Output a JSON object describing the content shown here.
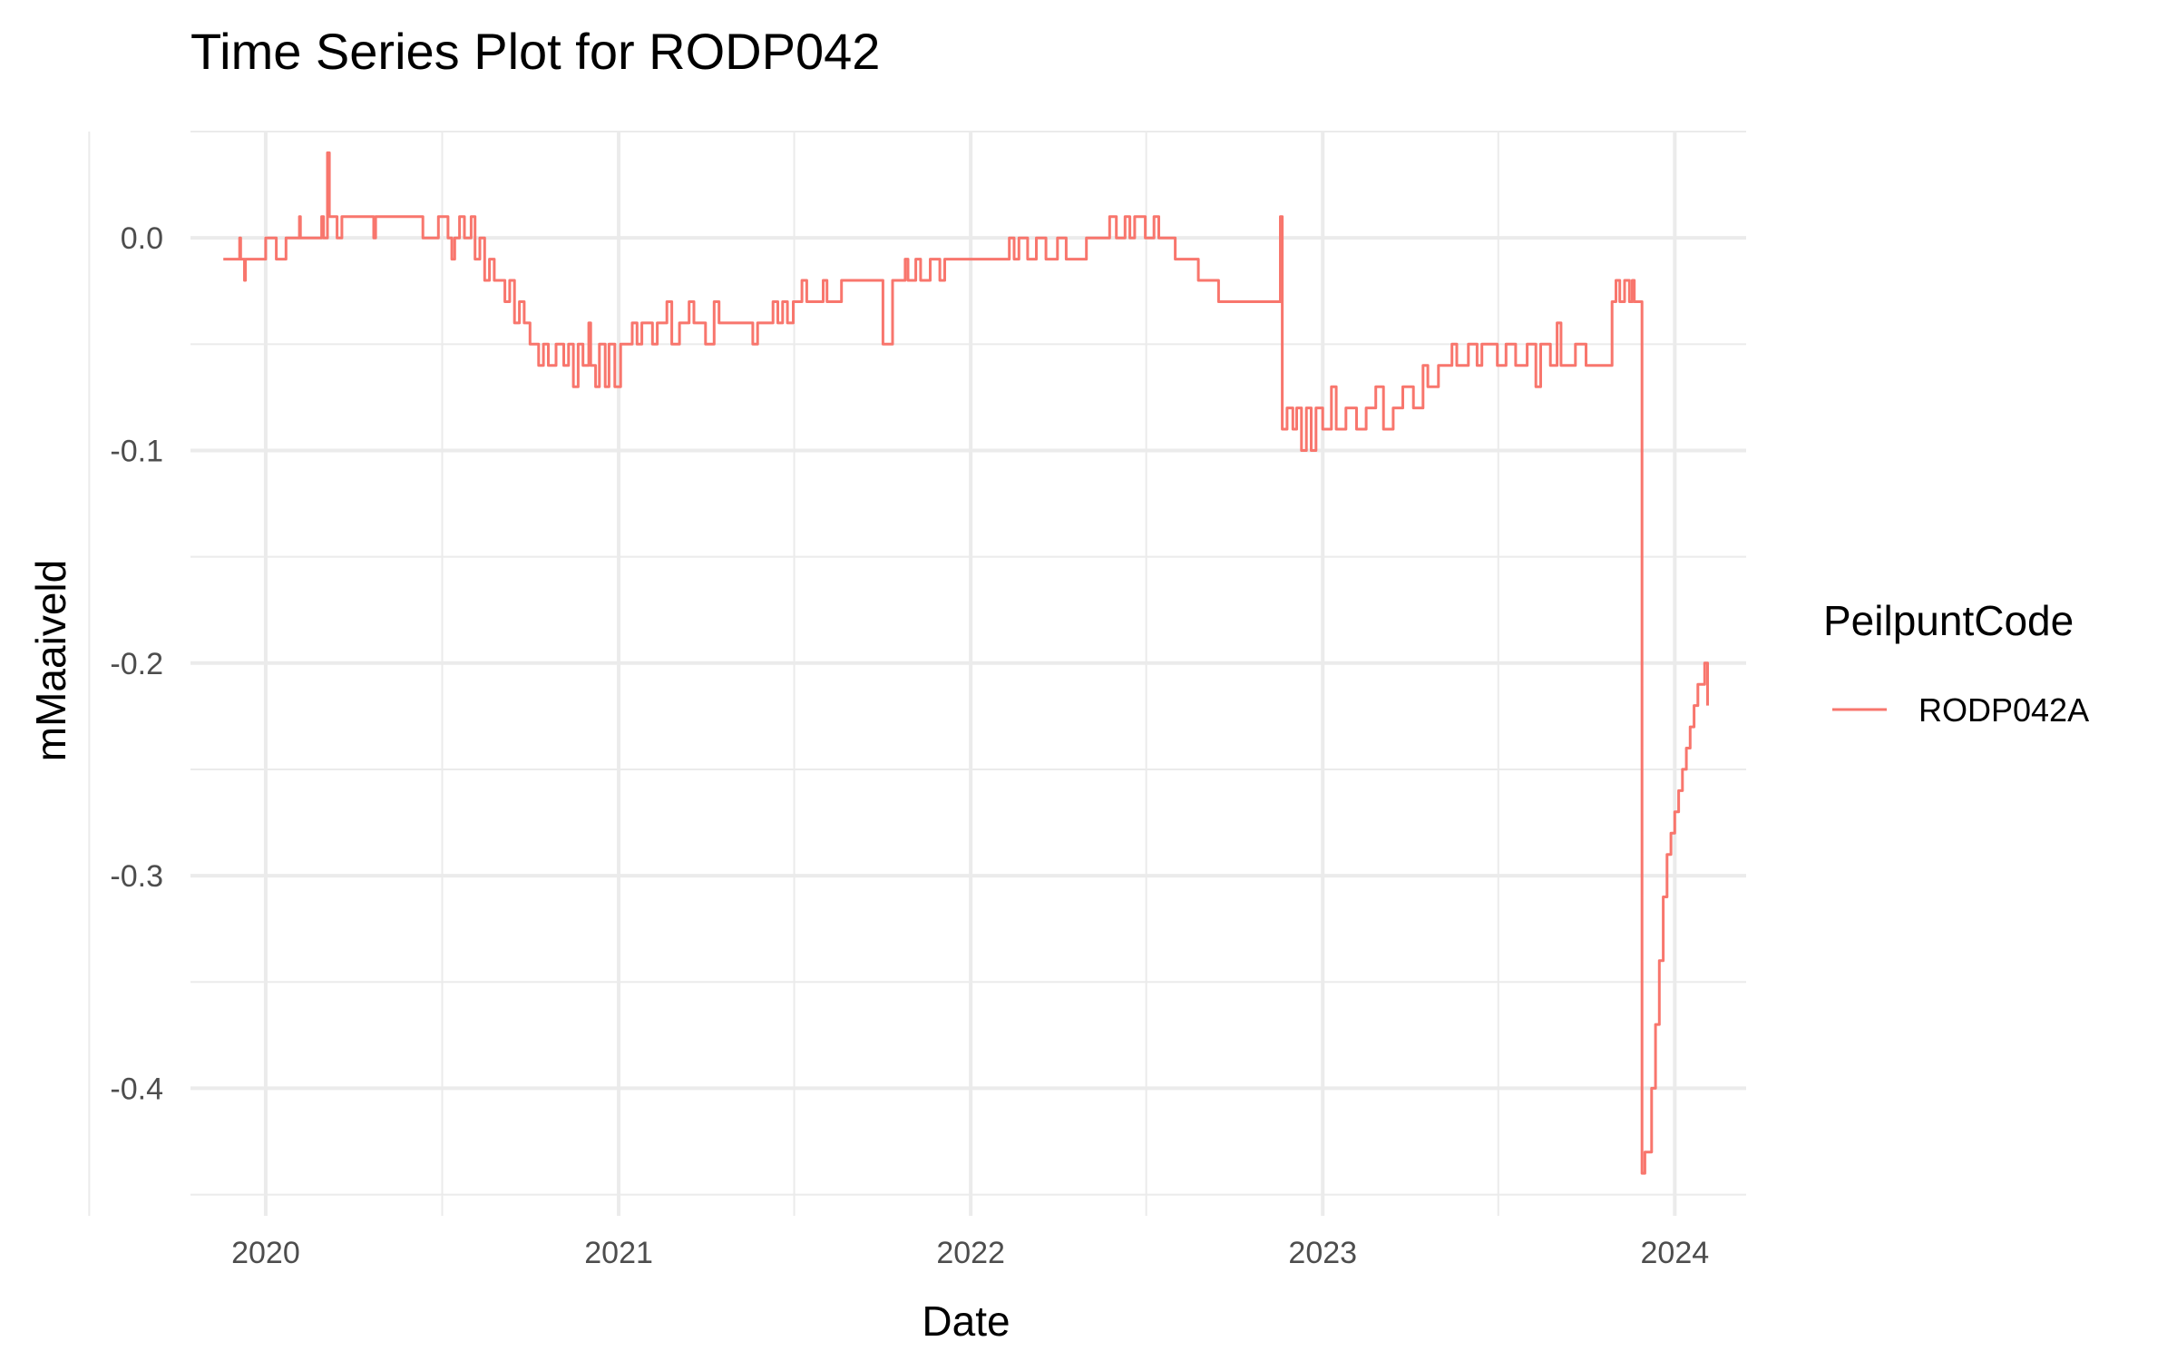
{
  "chart_data": {
    "type": "line",
    "title": "Time Series Plot for RODP042",
    "xlabel": "Date",
    "ylabel": "mMaaiveld",
    "x_ticks": [
      "2020",
      "2021",
      "2022",
      "2023",
      "2024"
    ],
    "y_ticks": [
      "0.0",
      "-0.1",
      "-0.2",
      "-0.3",
      "-0.4"
    ],
    "xlim": [
      "2019-10-15",
      "2024-03-15"
    ],
    "ylim": [
      -0.46,
      0.05
    ],
    "grid": true,
    "legend": {
      "title": "PeilpuntCode",
      "position": "right"
    },
    "series": [
      {
        "name": "RODP042A",
        "color": "#F8766D",
        "points": [
          [
            "2019-11-18",
            -0.01
          ],
          [
            "2019-12-01",
            -0.01
          ],
          [
            "2019-12-05",
            0.0
          ],
          [
            "2019-12-06",
            -0.01
          ],
          [
            "2019-12-10",
            -0.02
          ],
          [
            "2019-12-11",
            -0.01
          ],
          [
            "2019-12-30",
            -0.01
          ],
          [
            "2020-01-01",
            0.0
          ],
          [
            "2020-01-10",
            0.0
          ],
          [
            "2020-01-12",
            -0.01
          ],
          [
            "2020-01-20",
            -0.01
          ],
          [
            "2020-01-22",
            0.0
          ],
          [
            "2020-02-01",
            0.0
          ],
          [
            "2020-02-05",
            0.01
          ],
          [
            "2020-02-06",
            0.0
          ],
          [
            "2020-02-20",
            0.0
          ],
          [
            "2020-02-28",
            0.01
          ],
          [
            "2020-03-01",
            0.0
          ],
          [
            "2020-03-05",
            0.04
          ],
          [
            "2020-03-07",
            0.01
          ],
          [
            "2020-03-15",
            0.0
          ],
          [
            "2020-03-20",
            0.01
          ],
          [
            "2020-04-20",
            0.01
          ],
          [
            "2020-04-22",
            0.0
          ],
          [
            "2020-04-24",
            0.01
          ],
          [
            "2020-06-10",
            0.01
          ],
          [
            "2020-06-12",
            0.0
          ],
          [
            "2020-06-25",
            0.0
          ],
          [
            "2020-06-28",
            0.01
          ],
          [
            "2020-07-05",
            0.01
          ],
          [
            "2020-07-08",
            0.0
          ],
          [
            "2020-07-12",
            -0.01
          ],
          [
            "2020-07-15",
            0.0
          ],
          [
            "2020-07-20",
            0.01
          ],
          [
            "2020-07-25",
            0.0
          ],
          [
            "2020-08-01",
            0.01
          ],
          [
            "2020-08-05",
            -0.01
          ],
          [
            "2020-08-10",
            0.0
          ],
          [
            "2020-08-15",
            -0.02
          ],
          [
            "2020-08-20",
            -0.01
          ],
          [
            "2020-08-25",
            -0.02
          ],
          [
            "2020-09-01",
            -0.02
          ],
          [
            "2020-09-05",
            -0.03
          ],
          [
            "2020-09-10",
            -0.02
          ],
          [
            "2020-09-15",
            -0.04
          ],
          [
            "2020-09-20",
            -0.03
          ],
          [
            "2020-09-25",
            -0.04
          ],
          [
            "2020-10-01",
            -0.05
          ],
          [
            "2020-10-05",
            -0.05
          ],
          [
            "2020-10-10",
            -0.06
          ],
          [
            "2020-10-15",
            -0.05
          ],
          [
            "2020-10-20",
            -0.06
          ],
          [
            "2020-10-28",
            -0.05
          ],
          [
            "2020-11-05",
            -0.06
          ],
          [
            "2020-11-10",
            -0.05
          ],
          [
            "2020-11-15",
            -0.07
          ],
          [
            "2020-11-20",
            -0.05
          ],
          [
            "2020-11-25",
            -0.06
          ],
          [
            "2020-12-01",
            -0.04
          ],
          [
            "2020-12-03",
            -0.06
          ],
          [
            "2020-12-08",
            -0.07
          ],
          [
            "2020-12-12",
            -0.05
          ],
          [
            "2020-12-18",
            -0.07
          ],
          [
            "2020-12-22",
            -0.05
          ],
          [
            "2020-12-28",
            -0.07
          ],
          [
            "2021-01-03",
            -0.05
          ],
          [
            "2021-01-10",
            -0.05
          ],
          [
            "2021-01-15",
            -0.04
          ],
          [
            "2021-01-20",
            -0.05
          ],
          [
            "2021-01-25",
            -0.04
          ],
          [
            "2021-02-05",
            -0.05
          ],
          [
            "2021-02-10",
            -0.04
          ],
          [
            "2021-02-20",
            -0.03
          ],
          [
            "2021-02-25",
            -0.05
          ],
          [
            "2021-03-05",
            -0.04
          ],
          [
            "2021-03-15",
            -0.03
          ],
          [
            "2021-03-20",
            -0.04
          ],
          [
            "2021-04-01",
            -0.05
          ],
          [
            "2021-04-10",
            -0.03
          ],
          [
            "2021-04-15",
            -0.04
          ],
          [
            "2021-05-15",
            -0.04
          ],
          [
            "2021-05-20",
            -0.05
          ],
          [
            "2021-05-25",
            -0.04
          ],
          [
            "2021-06-01",
            -0.04
          ],
          [
            "2021-06-10",
            -0.03
          ],
          [
            "2021-06-15",
            -0.04
          ],
          [
            "2021-06-20",
            -0.03
          ],
          [
            "2021-06-25",
            -0.04
          ],
          [
            "2021-07-01",
            -0.03
          ],
          [
            "2021-07-10",
            -0.02
          ],
          [
            "2021-07-15",
            -0.03
          ],
          [
            "2021-08-01",
            -0.02
          ],
          [
            "2021-08-05",
            -0.03
          ],
          [
            "2021-08-20",
            -0.02
          ],
          [
            "2021-09-01",
            -0.02
          ],
          [
            "2021-09-30",
            -0.02
          ],
          [
            "2021-10-02",
            -0.05
          ],
          [
            "2021-10-10",
            -0.05
          ],
          [
            "2021-10-12",
            -0.02
          ],
          [
            "2021-10-15",
            -0.02
          ],
          [
            "2021-10-25",
            -0.01
          ],
          [
            "2021-10-28",
            -0.02
          ],
          [
            "2021-11-05",
            -0.01
          ],
          [
            "2021-11-10",
            -0.02
          ],
          [
            "2021-11-20",
            -0.01
          ],
          [
            "2021-11-30",
            -0.02
          ],
          [
            "2021-12-05",
            -0.01
          ],
          [
            "2022-01-01",
            -0.01
          ],
          [
            "2022-02-01",
            -0.01
          ],
          [
            "2022-02-10",
            0.0
          ],
          [
            "2022-02-15",
            -0.01
          ],
          [
            "2022-02-20",
            0.0
          ],
          [
            "2022-03-01",
            -0.01
          ],
          [
            "2022-03-10",
            0.0
          ],
          [
            "2022-03-20",
            -0.01
          ],
          [
            "2022-04-01",
            0.0
          ],
          [
            "2022-04-10",
            -0.01
          ],
          [
            "2022-05-01",
            0.0
          ],
          [
            "2022-05-20",
            0.0
          ],
          [
            "2022-05-25",
            0.01
          ],
          [
            "2022-06-01",
            0.0
          ],
          [
            "2022-06-10",
            0.01
          ],
          [
            "2022-06-15",
            0.0
          ],
          [
            "2022-06-20",
            0.01
          ],
          [
            "2022-07-01",
            0.0
          ],
          [
            "2022-07-10",
            0.01
          ],
          [
            "2022-07-15",
            0.0
          ],
          [
            "2022-07-25",
            0.0
          ],
          [
            "2022-08-01",
            -0.01
          ],
          [
            "2022-08-20",
            -0.01
          ],
          [
            "2022-08-25",
            -0.02
          ],
          [
            "2022-09-10",
            -0.02
          ],
          [
            "2022-09-15",
            -0.03
          ],
          [
            "2022-11-15",
            -0.03
          ],
          [
            "2022-11-18",
            0.01
          ],
          [
            "2022-11-20",
            -0.09
          ],
          [
            "2022-11-25",
            -0.08
          ],
          [
            "2022-12-01",
            -0.09
          ],
          [
            "2022-12-05",
            -0.08
          ],
          [
            "2022-12-10",
            -0.1
          ],
          [
            "2022-12-15",
            -0.08
          ],
          [
            "2022-12-20",
            -0.1
          ],
          [
            "2022-12-25",
            -0.08
          ],
          [
            "2023-01-01",
            -0.09
          ],
          [
            "2023-01-10",
            -0.07
          ],
          [
            "2023-01-15",
            -0.09
          ],
          [
            "2023-01-25",
            -0.08
          ],
          [
            "2023-02-05",
            -0.09
          ],
          [
            "2023-02-15",
            -0.08
          ],
          [
            "2023-02-25",
            -0.07
          ],
          [
            "2023-03-05",
            -0.09
          ],
          [
            "2023-03-15",
            -0.08
          ],
          [
            "2023-03-25",
            -0.07
          ],
          [
            "2023-04-05",
            -0.08
          ],
          [
            "2023-04-15",
            -0.06
          ],
          [
            "2023-04-20",
            -0.07
          ],
          [
            "2023-05-01",
            -0.06
          ],
          [
            "2023-05-15",
            -0.05
          ],
          [
            "2023-05-20",
            -0.06
          ],
          [
            "2023-06-01",
            -0.05
          ],
          [
            "2023-06-10",
            -0.06
          ],
          [
            "2023-06-15",
            -0.05
          ],
          [
            "2023-07-01",
            -0.06
          ],
          [
            "2023-07-10",
            -0.05
          ],
          [
            "2023-07-20",
            -0.06
          ],
          [
            "2023-08-01",
            -0.05
          ],
          [
            "2023-08-10",
            -0.07
          ],
          [
            "2023-08-15",
            -0.05
          ],
          [
            "2023-08-25",
            -0.06
          ],
          [
            "2023-09-01",
            -0.04
          ],
          [
            "2023-09-05",
            -0.06
          ],
          [
            "2023-09-20",
            -0.05
          ],
          [
            "2023-10-01",
            -0.06
          ],
          [
            "2023-10-25",
            -0.06
          ],
          [
            "2023-10-28",
            -0.03
          ],
          [
            "2023-11-01",
            -0.02
          ],
          [
            "2023-11-05",
            -0.03
          ],
          [
            "2023-11-10",
            -0.02
          ],
          [
            "2023-11-15",
            -0.03
          ],
          [
            "2023-11-18",
            -0.02
          ],
          [
            "2023-11-20",
            -0.03
          ],
          [
            "2023-11-25",
            -0.03
          ],
          [
            "2023-11-28",
            -0.44
          ],
          [
            "2023-12-01",
            -0.43
          ],
          [
            "2023-12-05",
            -0.43
          ],
          [
            "2023-12-08",
            -0.4
          ],
          [
            "2023-12-12",
            -0.37
          ],
          [
            "2023-12-16",
            -0.34
          ],
          [
            "2023-12-20",
            -0.31
          ],
          [
            "2023-12-24",
            -0.29
          ],
          [
            "2023-12-28",
            -0.28
          ],
          [
            "2024-01-01",
            -0.27
          ],
          [
            "2024-01-05",
            -0.26
          ],
          [
            "2024-01-09",
            -0.25
          ],
          [
            "2024-01-13",
            -0.24
          ],
          [
            "2024-01-17",
            -0.23
          ],
          [
            "2024-01-21",
            -0.22
          ],
          [
            "2024-01-25",
            -0.21
          ],
          [
            "2024-01-29",
            -0.21
          ],
          [
            "2024-02-01",
            -0.2
          ],
          [
            "2024-02-04",
            -0.22
          ]
        ]
      }
    ]
  }
}
